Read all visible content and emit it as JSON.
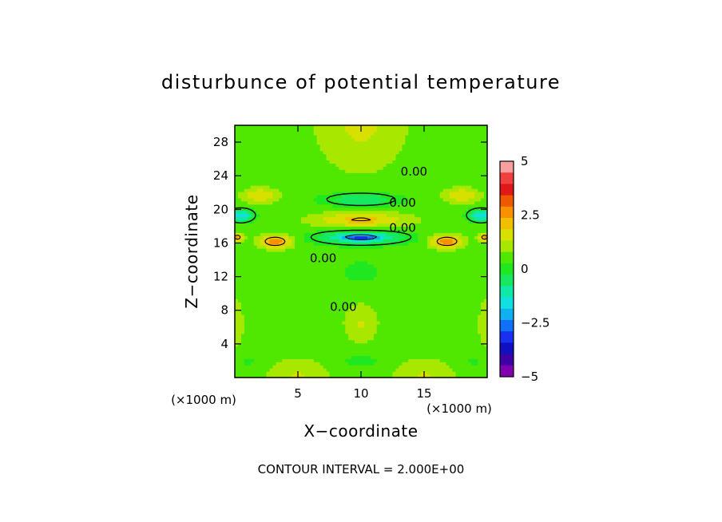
{
  "chart_data": {
    "type": "heatmap",
    "title": "disturbunce of potential temperature",
    "xlabel": "X−coordinate",
    "ylabel": "Z−coordinate",
    "x_unit_label": "(×1000 m)",
    "y_unit_label": "(×1000 m)",
    "xlim": [
      0,
      20
    ],
    "ylim": [
      0,
      30
    ],
    "x_ticks": [
      5,
      10,
      15
    ],
    "x_tick_labels": [
      "5",
      "10",
      "15"
    ],
    "y_ticks": [
      4,
      8,
      12,
      16,
      20,
      24,
      28
    ],
    "y_tick_labels": [
      "4",
      "8",
      "12",
      "16",
      "20",
      "24",
      "28"
    ],
    "footer": "CONTOUR INTERVAL = 2.000E+00",
    "contour_labels": [
      {
        "text": "0.00",
        "x": 14.2,
        "z": 24.5
      },
      {
        "text": "0.00",
        "x": 13.3,
        "z": 20.8
      },
      {
        "text": "0.00",
        "x": 13.3,
        "z": 17.8
      },
      {
        "text": "0.00",
        "x": 7.0,
        "z": 14.2
      },
      {
        "text": "0.00",
        "x": 8.6,
        "z": 8.4
      }
    ],
    "colorbar": {
      "range": [
        -5,
        5
      ],
      "tick_values": [
        5,
        2.5,
        0,
        -2.5,
        -5
      ],
      "tick_labels": [
        "5",
        "2.5",
        "0",
        "−2.5",
        "−5"
      ],
      "colors": [
        "#f8a0a0",
        "#f04040",
        "#e01818",
        "#f05800",
        "#f89000",
        "#f0c000",
        "#d8e000",
        "#a8e800",
        "#50e800",
        "#20e820",
        "#18e860",
        "#10e8a8",
        "#10e0e0",
        "#10b0f0",
        "#1070f8",
        "#1830f0",
        "#1010c0",
        "#4000a8",
        "#8000b0"
      ]
    },
    "field": {
      "background_value": 0.45,
      "features": [
        {
          "x": 10,
          "z": 30.5,
          "sx": 3.6,
          "sz": 6,
          "value": 1.0
        },
        {
          "x": 10,
          "z": 21.2,
          "sx": 2.8,
          "sz": 0.8,
          "value": -1.3
        },
        {
          "x": 2.0,
          "z": 21.7,
          "sx": 1.4,
          "sz": 0.9,
          "value": 1.4
        },
        {
          "x": 18.0,
          "z": 21.7,
          "sx": 1.4,
          "sz": 0.9,
          "value": 1.4
        },
        {
          "x": 0.5,
          "z": 19.3,
          "sx": 0.9,
          "sz": 0.7,
          "value": -2.3
        },
        {
          "x": 19.5,
          "z": 19.3,
          "sx": 0.9,
          "sz": 0.7,
          "value": -2.3
        },
        {
          "x": 10,
          "z": 18.8,
          "sx": 3.8,
          "sz": 0.9,
          "value": 1.6
        },
        {
          "x": 3.2,
          "z": 16.2,
          "sx": 1.3,
          "sz": 0.8,
          "value": 2.3
        },
        {
          "x": 16.8,
          "z": 16.2,
          "sx": 1.3,
          "sz": 0.8,
          "value": 2.3
        },
        {
          "x": 0.2,
          "z": 16.7,
          "sx": 0.5,
          "sz": 0.5,
          "value": 2.0
        },
        {
          "x": 19.8,
          "z": 16.7,
          "sx": 0.5,
          "sz": 0.5,
          "value": 2.0
        },
        {
          "x": 10,
          "z": 16.7,
          "sx": 3.2,
          "sz": 0.75,
          "value": -2.2
        },
        {
          "x": 10,
          "z": 16.7,
          "sx": 1.3,
          "sz": 0.3,
          "value": -1.5
        },
        {
          "x": 10,
          "z": 12.6,
          "sx": 2.4,
          "sz": 2.2,
          "value": -0.25
        },
        {
          "x": 4.0,
          "z": 12.0,
          "sx": 1.8,
          "sz": 2.0,
          "value": -0.15
        },
        {
          "x": 16.0,
          "z": 12.0,
          "sx": 1.8,
          "sz": 2.0,
          "value": -0.15
        },
        {
          "x": 10,
          "z": 6.5,
          "sx": 1.4,
          "sz": 2.4,
          "value": 0.9
        },
        {
          "x": 5.0,
          "z": 0.2,
          "sx": 2.6,
          "sz": 2.2,
          "value": 0.9
        },
        {
          "x": 15.0,
          "z": 0.2,
          "sx": 2.6,
          "sz": 2.2,
          "value": 0.9
        },
        {
          "x": 10,
          "z": 2.0,
          "sx": 2.0,
          "sz": 1.0,
          "value": -0.35
        },
        {
          "x": 1.0,
          "z": 2.0,
          "sx": 1.3,
          "sz": 1.0,
          "value": -0.3
        },
        {
          "x": 19.0,
          "z": 2.0,
          "sx": 1.3,
          "sz": 1.0,
          "value": -0.3
        },
        {
          "x": 0.0,
          "z": 6.5,
          "sx": 0.8,
          "sz": 3.5,
          "value": 0.7
        },
        {
          "x": 20.0,
          "z": 6.5,
          "sx": 0.8,
          "sz": 3.5,
          "value": 0.7
        }
      ],
      "contour_levels": [
        -2,
        0,
        2
      ]
    }
  }
}
